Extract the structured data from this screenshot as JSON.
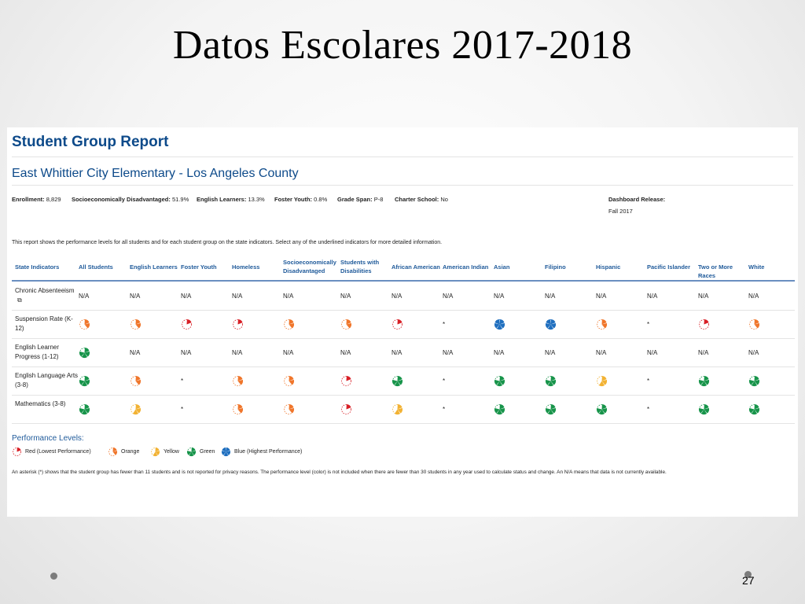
{
  "slide": {
    "title": "Datos Escolares 2017-2018",
    "page_number": "27"
  },
  "report": {
    "title": "Student Group Report",
    "school": "East Whittier City Elementary - Los Angeles County",
    "meta": {
      "enrollment": {
        "label": "Enrollment:",
        "value": "8,829"
      },
      "ses": {
        "label": "Socioeconomically Disadvantaged:",
        "value": "51.9%"
      },
      "el": {
        "label": "English Learners:",
        "value": "13.3%"
      },
      "foster": {
        "label": "Foster Youth:",
        "value": "0.8%"
      },
      "grade": {
        "label": "Grade Span:",
        "value": "P-8"
      },
      "charter": {
        "label": "Charter School:",
        "value": "No"
      },
      "release": {
        "label": "Dashboard Release:",
        "value": "Fall 2017"
      }
    },
    "intro": "This report shows the performance levels for all students and for each student group on the state indicators. Select any of the underlined indicators for more detailed information."
  },
  "table": {
    "headers": [
      "State Indicators",
      "All Students",
      "English Learners",
      "Foster Youth",
      "Homeless",
      "Socioeconomically Disadvantaged",
      "Students with Disabilities",
      "African American",
      "American Indian",
      "Asian",
      "Filipino",
      "Hispanic",
      "Pacific Islander",
      "Two or More Races",
      "White"
    ],
    "rows": [
      {
        "label": "Chronic Absenteeism",
        "cells": [
          "N/A",
          "N/A",
          "N/A",
          "N/A",
          "N/A",
          "N/A",
          "N/A",
          "N/A",
          "N/A",
          "N/A",
          "N/A",
          "N/A",
          "N/A",
          "N/A"
        ]
      },
      {
        "label": "Suspension Rate (K-12)",
        "cells": [
          "orange",
          "orange",
          "red",
          "red",
          "orange",
          "orange",
          "red",
          "*",
          "blue",
          "blue",
          "orange",
          "*",
          "red",
          "orange"
        ]
      },
      {
        "label": "English Learner Progress (1-12)",
        "cells": [
          "green",
          "N/A",
          "N/A",
          "N/A",
          "N/A",
          "N/A",
          "N/A",
          "N/A",
          "N/A",
          "N/A",
          "N/A",
          "N/A",
          "N/A",
          "N/A"
        ]
      },
      {
        "label": "English Language Arts (3-8)",
        "cells": [
          "green",
          "orange",
          "*",
          "orange",
          "orange",
          "red",
          "green",
          "*",
          "green",
          "green",
          "yellow",
          "*",
          "green",
          "green"
        ]
      },
      {
        "label": "Mathematics (3-8)",
        "cells": [
          "green",
          "yellow",
          "*",
          "orange",
          "orange",
          "red",
          "yellow",
          "*",
          "green",
          "green",
          "green",
          "*",
          "green",
          "green"
        ]
      }
    ]
  },
  "legend": {
    "title": "Performance Levels:",
    "items": [
      {
        "level": "red",
        "label": "Red (Lowest Performance)"
      },
      {
        "level": "orange",
        "label": "Orange"
      },
      {
        "level": "yellow",
        "label": "Yellow"
      },
      {
        "level": "green",
        "label": "Green"
      },
      {
        "level": "blue",
        "label": "Blue (Highest Performance)"
      }
    ]
  },
  "footnote": "An asterisk (*) shows that the student group has fewer than 11 students and is not reported for privacy reasons. The performance level (color) is not included when there are fewer than 30 students in any year used to calculate status and change. An N/A means that data is not currently available.",
  "colors": {
    "red": "#d81f26",
    "orange": "#f0762b",
    "yellow": "#f2b233",
    "green": "#17944a",
    "blue": "#1f6fbf",
    "header_text": "#1f5a9a",
    "title_blue": "#0d4a8a"
  }
}
